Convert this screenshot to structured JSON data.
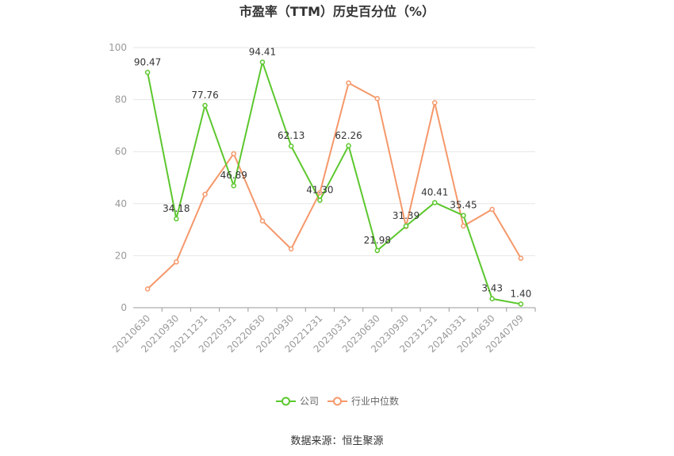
{
  "chart_data": {
    "type": "line",
    "title": "市盈率（TTM）历史百分位（%）",
    "categories": [
      "20210630",
      "20210930",
      "20211231",
      "20220331",
      "20220630",
      "20220930",
      "20221231",
      "20230331",
      "20230630",
      "20230930",
      "20231231",
      "20240331",
      "20240630",
      "20240709"
    ],
    "series": [
      {
        "name": "公司",
        "color": "#5cc72e",
        "values": [
          90.47,
          34.18,
          77.76,
          46.89,
          94.41,
          62.13,
          41.3,
          62.26,
          21.98,
          31.39,
          40.41,
          35.45,
          3.43,
          1.4
        ],
        "labels": [
          "90.47",
          "34.18",
          "77.76",
          "46.89",
          "94.41",
          "62.13",
          "41.30",
          "62.26",
          "21.98",
          "31.39",
          "40.41",
          "35.45",
          "3.43",
          "1.40"
        ]
      },
      {
        "name": "行业中位数",
        "color": "#f5986a",
        "values": [
          7.2,
          17.6,
          43.6,
          59.2,
          33.4,
          22.6,
          44.2,
          86.4,
          80.4,
          31.2,
          78.8,
          31.4,
          37.8,
          19.0
        ]
      }
    ],
    "ylim": [
      0,
      100
    ],
    "yticks": [
      "0",
      "20",
      "40",
      "60",
      "80",
      "100"
    ],
    "grid": true,
    "legend_position": "bottom-center",
    "source": "数据来源：恒生聚源"
  }
}
